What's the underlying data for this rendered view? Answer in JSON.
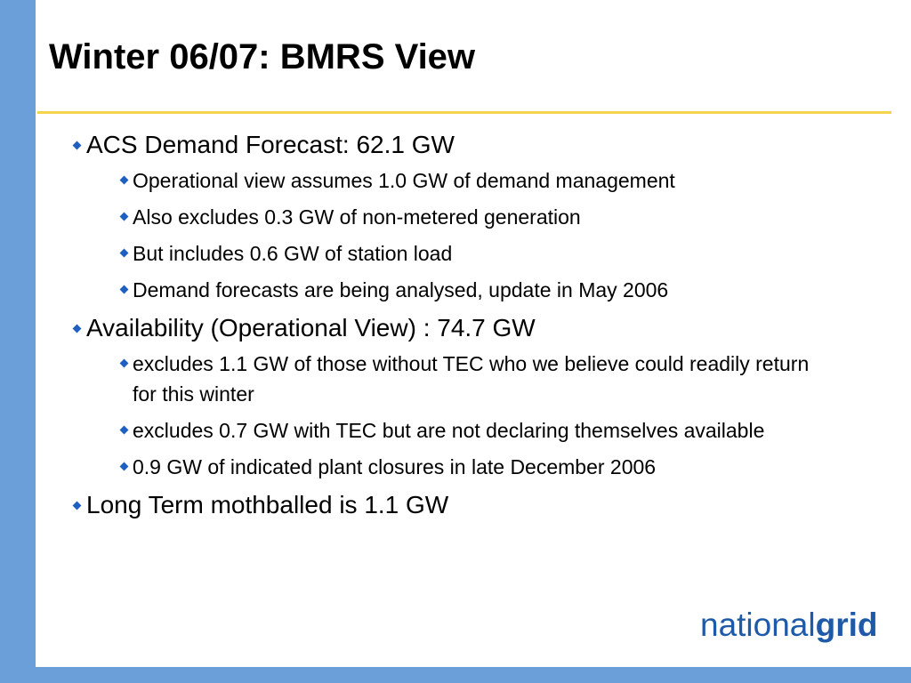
{
  "title": "Winter 06/07:  BMRS View",
  "bullets": [
    {
      "text": "ACS Demand Forecast: 62.1 GW",
      "sub": [
        "Operational view assumes 1.0 GW of demand management",
        "Also excludes 0.3 GW of non-metered generation",
        "But includes 0.6 GW of station load",
        "Demand forecasts are being analysed, update in May 2006"
      ]
    },
    {
      "text": "Availability (Operational View) : 74.7 GW",
      "sub": [
        "excludes 1.1 GW of those without TEC who we believe could readily return for this winter",
        "excludes 0.7 GW with TEC but are not declaring themselves available",
        "0.9 GW of indicated plant closures in late December 2006"
      ]
    },
    {
      "text": "Long Term mothballed is 1.1 GW",
      "sub": []
    }
  ],
  "logo": {
    "part1": "national",
    "part2": "grid"
  }
}
